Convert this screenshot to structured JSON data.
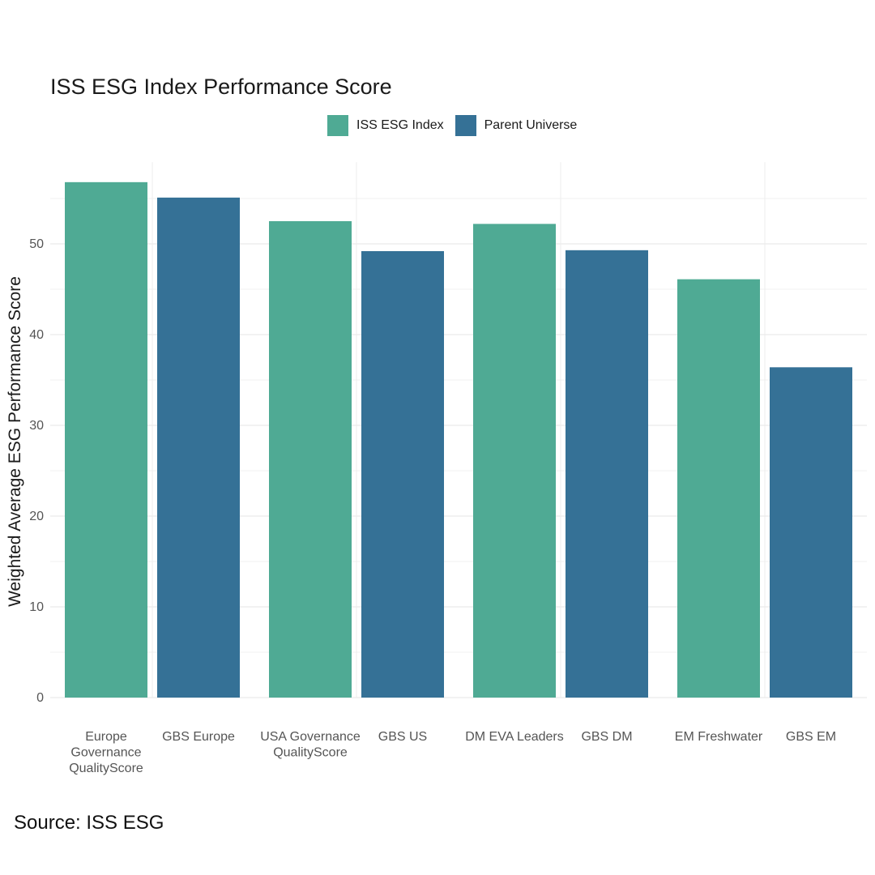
{
  "chart_data": {
    "type": "bar",
    "title": "ISS ESG Index Performance Score",
    "ylabel": "Weighted Average ESG Performance Score",
    "xlabel": "",
    "ylim": [
      0,
      59
    ],
    "yticks": [
      0,
      10,
      20,
      30,
      40,
      50
    ],
    "grid": true,
    "legend_position": "top",
    "series": [
      {
        "name": "ISS ESG Index",
        "color": "#4FAA94"
      },
      {
        "name": "Parent Universe",
        "color": "#357196"
      }
    ],
    "groups": [
      {
        "bars": [
          {
            "label": [
              "Europe",
              "Governance",
              "QualityScore"
            ],
            "value": 56.8,
            "series": 0
          },
          {
            "label": [
              "GBS Europe"
            ],
            "value": 55.1,
            "series": 1
          }
        ]
      },
      {
        "bars": [
          {
            "label": [
              "USA Governance",
              "QualityScore"
            ],
            "value": 52.5,
            "series": 0
          },
          {
            "label": [
              "GBS US"
            ],
            "value": 49.2,
            "series": 1
          }
        ]
      },
      {
        "bars": [
          {
            "label": [
              "DM EVA Leaders"
            ],
            "value": 52.2,
            "series": 0
          },
          {
            "label": [
              "GBS DM"
            ],
            "value": 49.3,
            "series": 1
          }
        ]
      },
      {
        "bars": [
          {
            "label": [
              "EM Freshwater"
            ],
            "value": 46.1,
            "series": 0
          },
          {
            "label": [
              "GBS EM"
            ],
            "value": 36.4,
            "series": 1
          }
        ]
      }
    ]
  },
  "source": "Source: ISS ESG"
}
